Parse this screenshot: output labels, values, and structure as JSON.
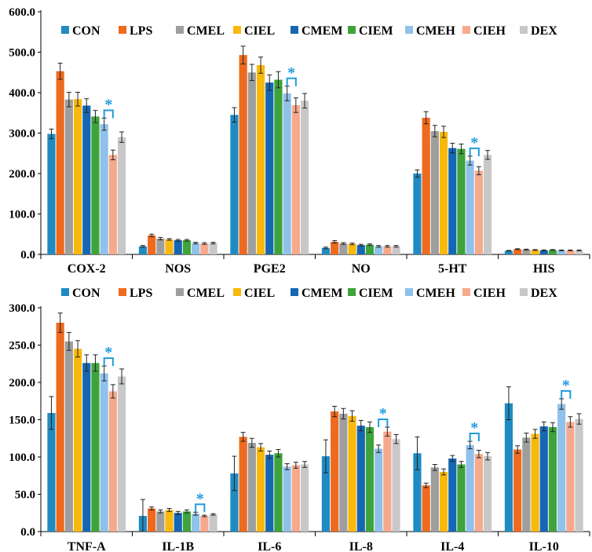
{
  "chart_data": [
    {
      "type": "bar",
      "title": "",
      "xlabel": "",
      "ylabel": "",
      "ylim": [
        0,
        600
      ],
      "yticks": [
        "0.0",
        "100.0",
        "200.0",
        "300.0",
        "400.0",
        "500.0",
        "600.0"
      ],
      "ytick_values": [
        0,
        100,
        200,
        300,
        400,
        500,
        600
      ],
      "legend_position": "top",
      "categories": [
        "COX-2",
        "NOS",
        "PGE2",
        "NO",
        "5-HT",
        "HIS"
      ],
      "series": [
        {
          "name": "CON",
          "values": [
            298,
            20,
            345,
            16,
            200,
            9
          ],
          "errors": [
            12,
            2,
            18,
            2,
            9,
            1
          ]
        },
        {
          "name": "LPS",
          "values": [
            453,
            47,
            493,
            31,
            338,
            13
          ],
          "errors": [
            20,
            3,
            22,
            3,
            15,
            1
          ]
        },
        {
          "name": "CMEL",
          "values": [
            383,
            39,
            450,
            27,
            305,
            12
          ],
          "errors": [
            18,
            3,
            20,
            2,
            14,
            1
          ]
        },
        {
          "name": "CIEL",
          "values": [
            384,
            37,
            468,
            26,
            303,
            11
          ],
          "errors": [
            17,
            2,
            20,
            2,
            14,
            1
          ]
        },
        {
          "name": "CMEM",
          "values": [
            368,
            35,
            425,
            23,
            263,
            10
          ],
          "errors": [
            17,
            2,
            19,
            2,
            12,
            1
          ]
        },
        {
          "name": "CIEM",
          "values": [
            341,
            35,
            432,
            24,
            261,
            11
          ],
          "errors": [
            15,
            2,
            20,
            2,
            12,
            1
          ]
        },
        {
          "name": "CMEH",
          "values": [
            322,
            28,
            398,
            20,
            232,
            10
          ],
          "errors": [
            15,
            2,
            18,
            2,
            11,
            1
          ]
        },
        {
          "name": "CIEH",
          "values": [
            246,
            27,
            369,
            20,
            207,
            10
          ],
          "errors": [
            12,
            2,
            18,
            2,
            10,
            1
          ]
        },
        {
          "name": "DEX",
          "values": [
            290,
            28,
            380,
            20,
            246,
            10
          ],
          "errors": [
            13,
            2,
            18,
            2,
            11,
            1
          ]
        }
      ],
      "annotations": [
        {
          "text": "*",
          "category": "COX-2"
        },
        {
          "text": "*",
          "category": "PGE2"
        },
        {
          "text": "*",
          "category": "5-HT"
        }
      ]
    },
    {
      "type": "bar",
      "title": "",
      "xlabel": "",
      "ylabel": "",
      "ylim": [
        0,
        300
      ],
      "yticks": [
        "0.0",
        "50.0",
        "100.0",
        "150.0",
        "200.0",
        "250.0",
        "300.0"
      ],
      "ytick_values": [
        0,
        50,
        100,
        150,
        200,
        250,
        300
      ],
      "legend_position": "top",
      "categories": [
        "TNF-A",
        "IL-1B",
        "IL-6",
        "IL-8",
        "IL-4",
        "IL-10"
      ],
      "series": [
        {
          "name": "CON",
          "values": [
            159,
            21,
            78,
            101,
            105,
            172
          ],
          "errors": [
            22,
            22,
            23,
            22,
            22,
            22
          ]
        },
        {
          "name": "LPS",
          "values": [
            280,
            31,
            127,
            161,
            62,
            110
          ],
          "errors": [
            13,
            2,
            6,
            7,
            3,
            5
          ]
        },
        {
          "name": "CMEL",
          "values": [
            255,
            27,
            119,
            158,
            86,
            126
          ],
          "errors": [
            12,
            2,
            6,
            7,
            4,
            6
          ]
        },
        {
          "name": "CIEL",
          "values": [
            245,
            29,
            113,
            155,
            80,
            131
          ],
          "errors": [
            11,
            2,
            5,
            7,
            4,
            6
          ]
        },
        {
          "name": "CMEM",
          "values": [
            226,
            25,
            103,
            142,
            98,
            141
          ],
          "errors": [
            11,
            2,
            5,
            7,
            4,
            6
          ]
        },
        {
          "name": "CIEM",
          "values": [
            226,
            27,
            105,
            140,
            90,
            140
          ],
          "errors": [
            11,
            2,
            5,
            7,
            4,
            6
          ]
        },
        {
          "name": "CMEH",
          "values": [
            212,
            24,
            87,
            111,
            116,
            171
          ],
          "errors": [
            10,
            2,
            4,
            5,
            5,
            7
          ]
        },
        {
          "name": "CIEH",
          "values": [
            188,
            21,
            89,
            134,
            104,
            147
          ],
          "errors": [
            9,
            1,
            4,
            6,
            5,
            7
          ]
        },
        {
          "name": "DEX",
          "values": [
            208,
            23,
            90,
            124,
            101,
            151
          ],
          "errors": [
            10,
            1,
            4,
            6,
            5,
            7
          ]
        }
      ],
      "annotations": [
        {
          "text": "*",
          "category": "TNF-A"
        },
        {
          "text": "*",
          "category": "IL-1B"
        },
        {
          "text": "*",
          "category": "IL-8"
        },
        {
          "text": "*",
          "category": "IL-4"
        },
        {
          "text": "*",
          "category": "IL-10"
        }
      ]
    }
  ],
  "colors": {
    "CON": "#1f8bc2",
    "LPS": "#ee6a1e",
    "CMEL": "#9e9e9e",
    "CIEL": "#f9b80c",
    "CMEM": "#1667b3",
    "CIEM": "#3ea33a",
    "CMEH": "#8fc1ea",
    "CIEH": "#f6a98c",
    "DEX": "#c8c8c8",
    "significance": "#1f9bdc",
    "axis": "#000000"
  }
}
